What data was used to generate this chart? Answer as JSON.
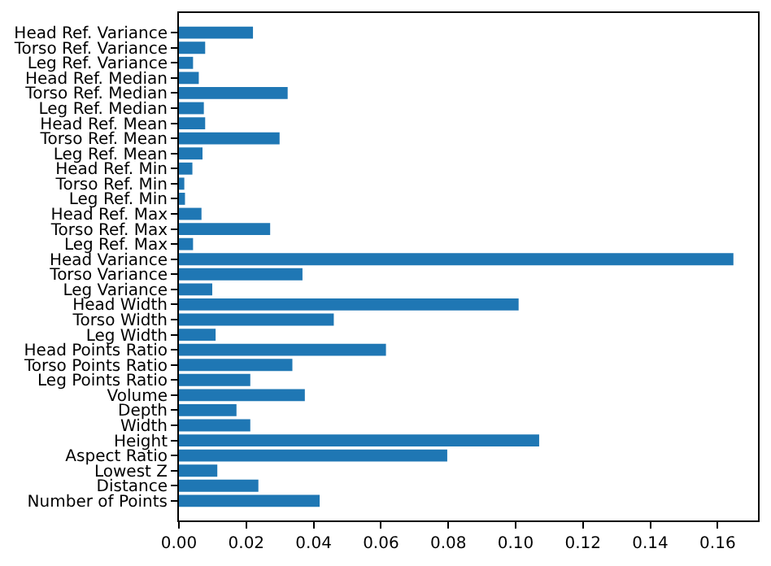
{
  "chart_data": {
    "type": "bar",
    "orientation": "horizontal",
    "color": "#1f77b4",
    "categories": [
      "Head Ref. Variance",
      "Torso Ref. Variance",
      "Leg Ref. Variance",
      "Head Ref. Median",
      "Torso Ref. Median",
      "Leg Ref. Median",
      "Head Ref. Mean",
      "Torso Ref. Mean",
      "Leg Ref. Mean",
      "Head Ref. Min",
      "Torso Ref. Min",
      "Leg Ref. Min",
      "Head Ref. Max",
      "Torso Ref. Max",
      "Leg Ref. Max",
      "Head Variance",
      "Torso Variance",
      "Leg Variance",
      "Head Width",
      "Torso Width",
      "Leg Width",
      "Head Points Ratio",
      "Torso Points Ratio",
      "Leg Points Ratio",
      "Volume",
      "Depth",
      "Width",
      "Height",
      "Aspect Ratio",
      "Lowest Z",
      "Distance",
      "Number of Points"
    ],
    "values": [
      0.022,
      0.0078,
      0.0042,
      0.0059,
      0.0323,
      0.0074,
      0.0078,
      0.0299,
      0.007,
      0.004,
      0.0016,
      0.0018,
      0.0067,
      0.0271,
      0.0042,
      0.1647,
      0.0367,
      0.0099,
      0.1009,
      0.046,
      0.0109,
      0.0615,
      0.0337,
      0.0212,
      0.0374,
      0.0171,
      0.0212,
      0.107,
      0.0797,
      0.0114,
      0.0236,
      0.0418
    ],
    "xlim": [
      0,
      0.172
    ],
    "xticks": [
      {
        "value": 0,
        "label": "0.00"
      },
      {
        "value": 0.02,
        "label": "0.02"
      },
      {
        "value": 0.04,
        "label": "0.04"
      },
      {
        "value": 0.06,
        "label": "0.06"
      },
      {
        "value": 0.08,
        "label": "0.08"
      },
      {
        "value": 0.1,
        "label": "0.10"
      },
      {
        "value": 0.12,
        "label": "0.12"
      },
      {
        "value": 0.14,
        "label": "0.14"
      },
      {
        "value": 0.16,
        "label": "0.16"
      }
    ],
    "tick_labels": "xy"
  }
}
